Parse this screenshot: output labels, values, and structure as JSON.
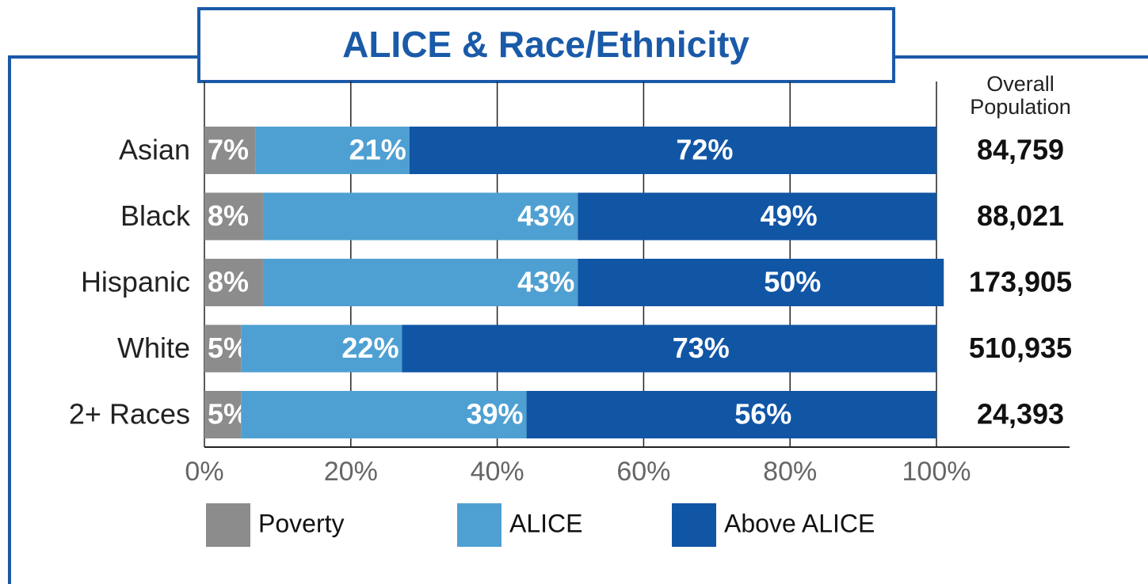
{
  "chart_data": {
    "type": "stacked-bar-horizontal",
    "title": "ALICE & Race/Ethnicity",
    "categories": [
      "Asian",
      "Black",
      "Hispanic",
      "White",
      "2+ Races"
    ],
    "series": [
      {
        "name": "Poverty",
        "color": "#8c8c8c",
        "values": [
          7,
          8,
          8,
          5,
          5
        ],
        "value_labels": [
          "7%",
          "8%",
          "8%",
          "5%",
          "5%"
        ]
      },
      {
        "name": "ALICE",
        "color": "#4fa0d2",
        "values": [
          21,
          43,
          43,
          22,
          39
        ],
        "value_labels": [
          "21%",
          "43%",
          "43%",
          "22%",
          "39%"
        ]
      },
      {
        "name": "Above ALICE",
        "color": "#1155a5",
        "values": [
          72,
          49,
          50,
          73,
          56
        ],
        "value_labels": [
          "72%",
          "49%",
          "50%",
          "73%",
          "56%"
        ]
      }
    ],
    "population": {
      "label": "Overall Population",
      "values": [
        84759,
        88021,
        173905,
        510935,
        24393
      ],
      "value_labels": [
        "84,759",
        "88,021",
        "173,905",
        "510,935",
        "24,393"
      ]
    },
    "xlim": [
      0,
      100
    ],
    "xticks": [
      {
        "value": 0,
        "label": "0%"
      },
      {
        "value": 20,
        "label": "20%"
      },
      {
        "value": 40,
        "label": "40%"
      },
      {
        "value": 60,
        "label": "60%"
      },
      {
        "value": 80,
        "label": "80%"
      },
      {
        "value": 100,
        "label": "100%"
      }
    ],
    "grid": true
  }
}
